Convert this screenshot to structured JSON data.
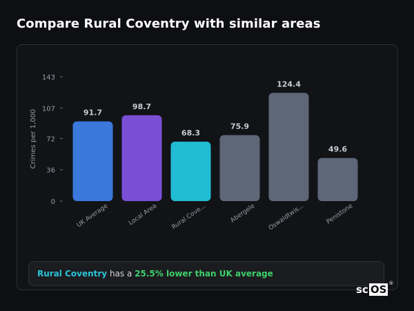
{
  "page": {
    "title": "Compare Rural Coventry with similar areas"
  },
  "chart_data": {
    "type": "bar",
    "ylabel": "Crimes per 1,000",
    "ylim": [
      0,
      143
    ],
    "yticks": [
      0,
      36,
      72,
      107,
      143
    ],
    "categories": [
      "UK Average",
      "Local Area",
      "Rural Cove...",
      "Abergele",
      "Oswaldtwis...",
      "Penistone"
    ],
    "values": [
      91.7,
      98.7,
      68.3,
      75.9,
      124.4,
      49.6
    ],
    "colors": [
      "#3a78db",
      "#7a4fd6",
      "#20bcd4",
      "#5d6778",
      "#5d6778",
      "#5d6778"
    ],
    "grid": false,
    "legend": "none"
  },
  "summary": {
    "area": "Rural Coventry",
    "connector": "has a",
    "delta": "25.5% lower than UK average"
  },
  "brand": {
    "logo_prefix": "sc",
    "logo_box": "OS",
    "logo_mark": "®"
  },
  "colors": {
    "background": "#0e0f12",
    "card": "#121317",
    "accent_area": "#2bc4d6",
    "accent_delta": "#3fcf6a"
  }
}
